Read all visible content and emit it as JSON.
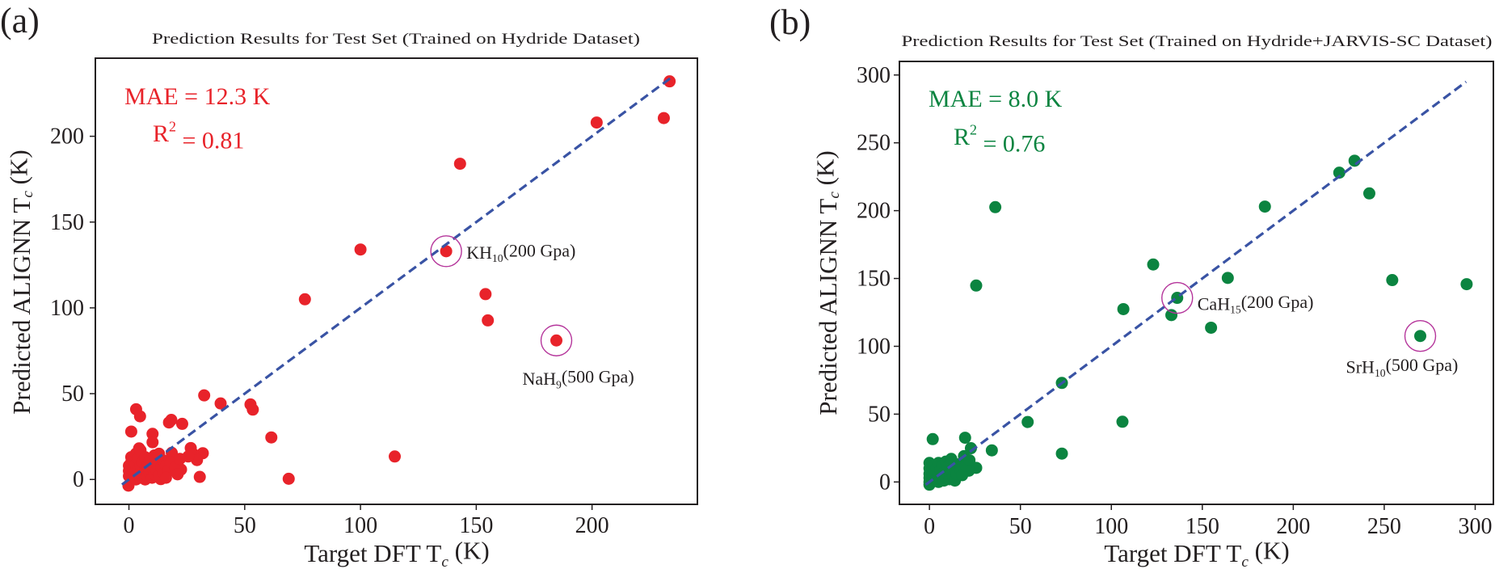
{
  "chart_data": [
    {
      "panel_label": "(a)",
      "type": "scatter",
      "title": "Prediction Results for Test Set (Trained on Hydride Dataset)",
      "xlabel": {
        "main": "Target DFT T",
        "sub": "c",
        "end": " (K)"
      },
      "ylabel": {
        "main": "Predicted ALIGNN T",
        "sub": "c",
        "end": " (K)"
      },
      "xlim": [
        -14.5,
        245.5
      ],
      "ylim": [
        -14.5,
        245.5
      ],
      "xticks": [
        0,
        50,
        100,
        150,
        200
      ],
      "yticks": [
        0,
        50,
        100,
        150,
        200
      ],
      "grid": false,
      "color": "#e8232a",
      "reference_line": {
        "type": "y=x",
        "from": -3,
        "to": 234,
        "color": "#3953a4",
        "style": "dashed"
      },
      "stats": {
        "mae": "MAE = 12.3 K",
        "r2_main": "R",
        "r2_sup": "2",
        "r2_end": " = 0.81"
      },
      "annotations": [
        {
          "x": 137,
          "y": 133,
          "main": "KH",
          "sub": "10",
          "end": "(200 Gpa)",
          "circle_color": "#b5359b"
        },
        {
          "x": 184.6,
          "y": 81,
          "main": "NaH",
          "sub": "9",
          "end": "(500 Gpa)",
          "circle_color": "#b5359b"
        }
      ],
      "points": [
        [
          233.5,
          232
        ],
        [
          202,
          208
        ],
        [
          231,
          210.6
        ],
        [
          143,
          184
        ],
        [
          100,
          134
        ],
        [
          137,
          133
        ],
        [
          76,
          105
        ],
        [
          154,
          108
        ],
        [
          155,
          92.7
        ],
        [
          184.6,
          81
        ],
        [
          32.5,
          49
        ],
        [
          39.6,
          44.3
        ],
        [
          52.5,
          43.7
        ],
        [
          53.5,
          40.7
        ],
        [
          61.5,
          24.5
        ],
        [
          69,
          0.4
        ],
        [
          114.8,
          13.4
        ],
        [
          3.1,
          40.9
        ],
        [
          4.8,
          36.8
        ],
        [
          1,
          27.9
        ],
        [
          17.3,
          33.2
        ],
        [
          18.3,
          34.7
        ],
        [
          23,
          32.4
        ],
        [
          10.2,
          26.6
        ],
        [
          10.2,
          21.7
        ],
        [
          18.5,
          15.5
        ],
        [
          26.7,
          18.3
        ],
        [
          27.7,
          14.9
        ],
        [
          31.9,
          15.3
        ],
        [
          29.4,
          11.3
        ],
        [
          25.6,
          13.4
        ],
        [
          30.6,
          1.5
        ],
        [
          22.5,
          5.8
        ],
        [
          19.8,
          7.5
        ],
        [
          13.75,
          0.2
        ],
        [
          -0.2,
          -3.6
        ],
        [
          4.4,
          18.1
        ],
        [
          0,
          2
        ],
        [
          0,
          5
        ],
        [
          0,
          8
        ],
        [
          1,
          0
        ],
        [
          1,
          3
        ],
        [
          1,
          6
        ],
        [
          1,
          10
        ],
        [
          1,
          13
        ],
        [
          2,
          1
        ],
        [
          2,
          4
        ],
        [
          2,
          7
        ],
        [
          2,
          11
        ],
        [
          3,
          0
        ],
        [
          3,
          5
        ],
        [
          3,
          9
        ],
        [
          3,
          15
        ],
        [
          4,
          2
        ],
        [
          4,
          6
        ],
        [
          4,
          12
        ],
        [
          5,
          1
        ],
        [
          5,
          4
        ],
        [
          5,
          8
        ],
        [
          5,
          17
        ],
        [
          6,
          3
        ],
        [
          6,
          10
        ],
        [
          7,
          0
        ],
        [
          7,
          6
        ],
        [
          7,
          13
        ],
        [
          8,
          2
        ],
        [
          8,
          8
        ],
        [
          9,
          4
        ],
        [
          9,
          11
        ],
        [
          10,
          1
        ],
        [
          10,
          7
        ],
        [
          11,
          3
        ],
        [
          11,
          14
        ],
        [
          12,
          5
        ],
        [
          12,
          9
        ],
        [
          13,
          2
        ],
        [
          14,
          7
        ],
        [
          15,
          4
        ],
        [
          15,
          11
        ],
        [
          16,
          8
        ],
        [
          17,
          5
        ],
        [
          18,
          10
        ],
        [
          20,
          7
        ],
        [
          21,
          3
        ],
        [
          22,
          12
        ],
        [
          16,
          1
        ],
        [
          13,
          15
        ]
      ]
    },
    {
      "panel_label": "(b)",
      "type": "scatter",
      "title": "Prediction Results for Test Set (Trained on Hydride+JARVIS-SC Dataset)",
      "xlabel": {
        "main": "Target DFT T",
        "sub": "c",
        "end": " (K)"
      },
      "ylabel": {
        "main": "Predicted ALIGNN T",
        "sub": "c",
        "end": " (K)"
      },
      "xlim": [
        -16.5,
        310
      ],
      "ylim": [
        -16.5,
        310
      ],
      "xticks": [
        0,
        50,
        100,
        150,
        200,
        250,
        300
      ],
      "yticks": [
        0,
        50,
        100,
        150,
        200,
        250,
        300
      ],
      "grid": false,
      "color": "#0b8440",
      "reference_line": {
        "type": "y=x",
        "from": -2,
        "to": 295,
        "color": "#3953a4",
        "style": "dashed"
      },
      "stats": {
        "mae": "MAE = 8.0 K",
        "r2_main": "R",
        "r2_sup": "2",
        "r2_end": " = 0.76"
      },
      "annotations": [
        {
          "x": 136.2,
          "y": 135.7,
          "main": "CaH",
          "sub": "15",
          "end": "(200 Gpa)",
          "circle_color": "#b5359b"
        },
        {
          "x": 269.8,
          "y": 107.6,
          "main": "SrH",
          "sub": "10",
          "end": "(500 Gpa)",
          "circle_color": "#b5359b"
        }
      ],
      "points": [
        [
          36.2,
          202.6
        ],
        [
          25.7,
          144.8
        ],
        [
          184.4,
          203
        ],
        [
          225.3,
          228
        ],
        [
          233.7,
          236.8
        ],
        [
          241.8,
          212.7
        ],
        [
          123,
          160.3
        ],
        [
          164,
          150.4
        ],
        [
          254.4,
          148.8
        ],
        [
          295.3,
          145.8
        ],
        [
          136.2,
          135.7
        ],
        [
          106.6,
          127.4
        ],
        [
          133,
          123
        ],
        [
          154.8,
          113.7
        ],
        [
          269.8,
          107.6
        ],
        [
          72.8,
          73
        ],
        [
          54,
          44.2
        ],
        [
          106.1,
          44.4
        ],
        [
          72.8,
          20.9
        ],
        [
          34.3,
          23.3
        ],
        [
          1.8,
          31.6
        ],
        [
          19.6,
          32.6
        ],
        [
          22.8,
          24.9
        ],
        [
          25.7,
          10.4
        ],
        [
          21.7,
          8.3
        ],
        [
          0,
          0
        ],
        [
          0,
          3
        ],
        [
          0,
          6
        ],
        [
          0,
          10
        ],
        [
          0,
          14
        ],
        [
          1,
          2
        ],
        [
          1,
          8
        ],
        [
          2,
          4
        ],
        [
          2,
          12
        ],
        [
          3,
          1
        ],
        [
          3,
          7
        ],
        [
          4,
          3
        ],
        [
          4,
          10
        ],
        [
          5,
          0
        ],
        [
          5,
          5
        ],
        [
          5,
          14
        ],
        [
          6,
          2
        ],
        [
          6,
          9
        ],
        [
          7,
          4
        ],
        [
          7,
          12
        ],
        [
          8,
          1
        ],
        [
          8,
          7
        ],
        [
          9,
          3
        ],
        [
          9,
          15
        ],
        [
          10,
          6
        ],
        [
          10,
          11
        ],
        [
          11,
          2
        ],
        [
          12,
          8
        ],
        [
          12,
          17
        ],
        [
          13,
          4
        ],
        [
          14,
          10
        ],
        [
          14,
          1
        ],
        [
          15,
          6
        ],
        [
          16,
          13
        ],
        [
          17,
          9
        ],
        [
          18,
          5
        ],
        [
          19,
          19
        ],
        [
          20,
          12
        ],
        [
          22,
          16
        ],
        [
          0,
          -2
        ]
      ]
    }
  ]
}
